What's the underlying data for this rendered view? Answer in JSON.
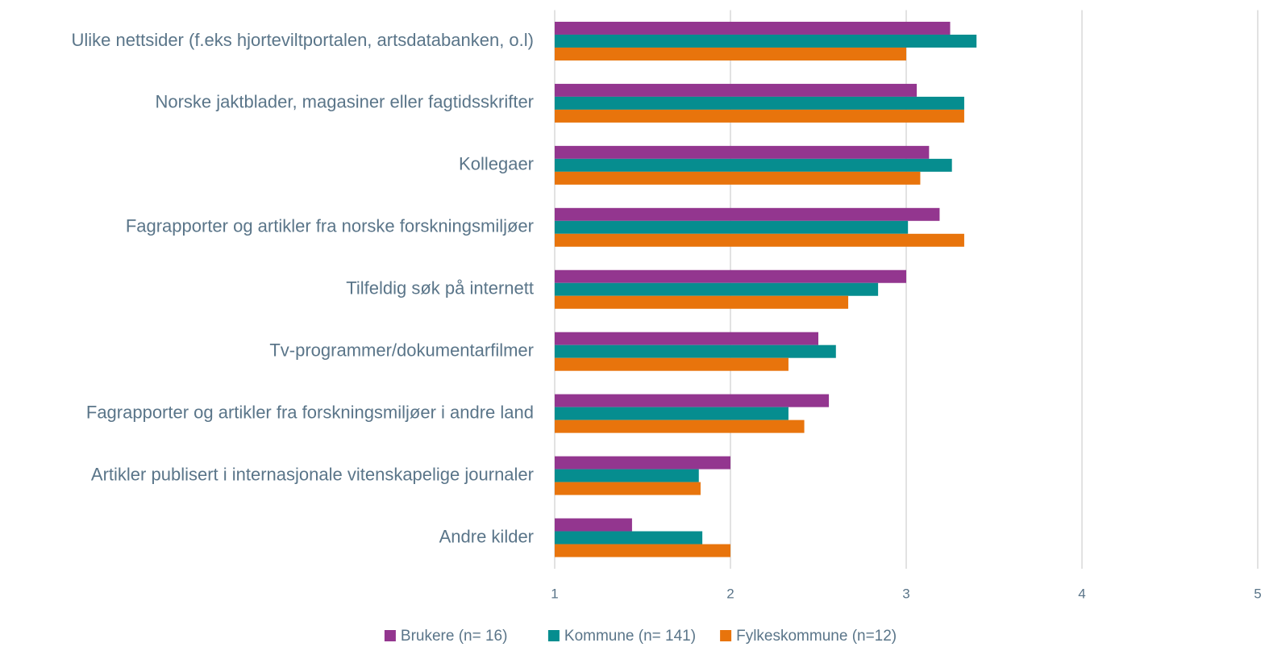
{
  "chart_data": {
    "type": "bar",
    "orientation": "horizontal",
    "categories": [
      "Ulike nettsider (f.eks hjorteviltportalen, artsdatabanken, o.l)",
      "Norske jaktblader, magasiner eller fagtidsskrifter",
      "Kollegaer",
      "Fagrapporter og artikler fra norske forskningsmiljøer",
      "Tilfeldig søk på internett",
      "Tv-programmer/dokumentarfilmer",
      "Fagrapporter og artikler fra forskningsmiljøer i andre land",
      "Artikler publisert i internasjonale vitenskapelige journaler",
      "Andre kilder"
    ],
    "series": [
      {
        "name": "Brukere (n= 16)",
        "color": "#93368f",
        "values": [
          3.25,
          3.06,
          3.13,
          3.19,
          3.0,
          2.5,
          2.56,
          2.0,
          1.44
        ]
      },
      {
        "name": "Kommune (n= 141)",
        "color": "#068d8f",
        "values": [
          3.4,
          3.33,
          3.26,
          3.01,
          2.84,
          2.6,
          2.33,
          1.82,
          1.84
        ]
      },
      {
        "name": "Fylkeskommune (n=12)",
        "color": "#e8740c",
        "values": [
          3.0,
          3.33,
          3.08,
          3.33,
          2.67,
          2.33,
          2.42,
          1.83,
          2.0
        ]
      }
    ],
    "xlim": [
      1,
      5
    ],
    "xticks": [
      1,
      2,
      3,
      4,
      5
    ],
    "grid": true,
    "legend": "bottom"
  }
}
